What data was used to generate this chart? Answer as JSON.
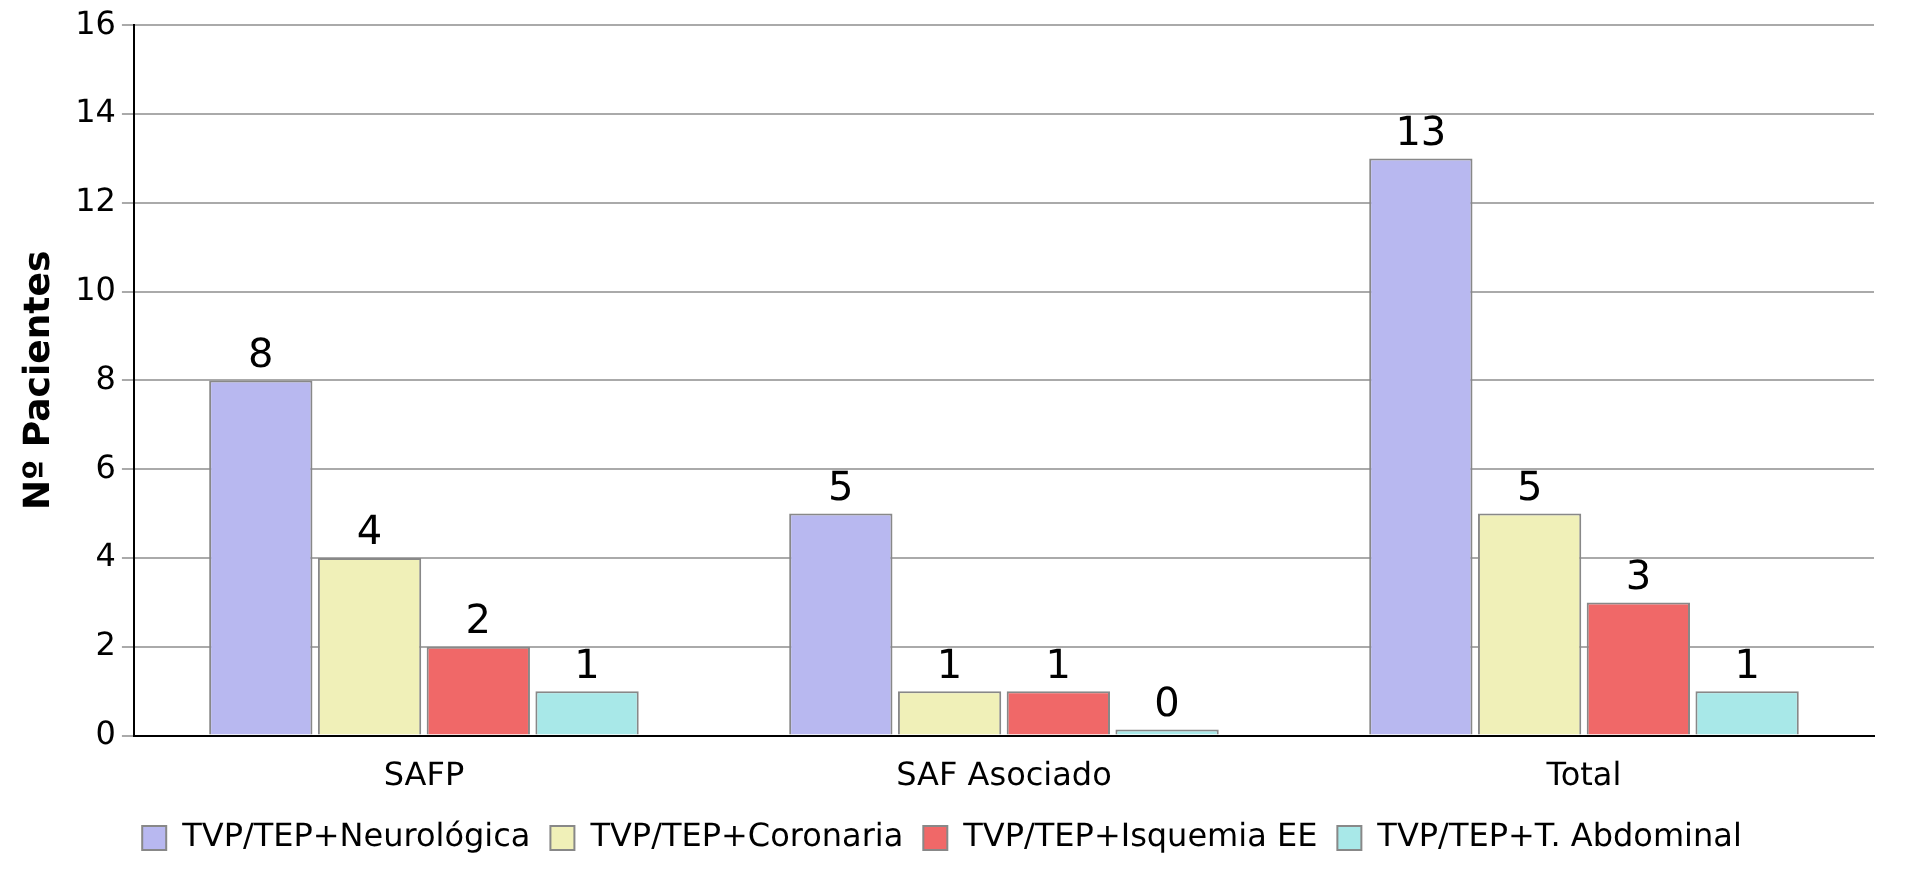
{
  "chart_data": {
    "type": "bar",
    "ylabel": "Nº Pacientes",
    "categories": [
      "SAFP",
      "SAF Asociado",
      "Total"
    ],
    "series": [
      {
        "name": "TVP/TEP+Neurológica",
        "color": "#b8b8f0",
        "values": [
          8,
          5,
          13
        ]
      },
      {
        "name": "TVP/TEP+Coronaria",
        "color": "#f0f0b8",
        "values": [
          4,
          1,
          5
        ]
      },
      {
        "name": "TVP/TEP+Isquemia EE",
        "color": "#f06868",
        "values": [
          2,
          1,
          3
        ]
      },
      {
        "name": "TVP/TEP+T. Abdominal",
        "color": "#a8e8e8",
        "values": [
          1,
          0,
          1
        ]
      }
    ],
    "ylim": [
      0,
      16
    ],
    "yticks": [
      0,
      2,
      4,
      6,
      8,
      10,
      12,
      14,
      16
    ],
    "grid": "y",
    "legend": "bottom",
    "data_labels": true
  }
}
